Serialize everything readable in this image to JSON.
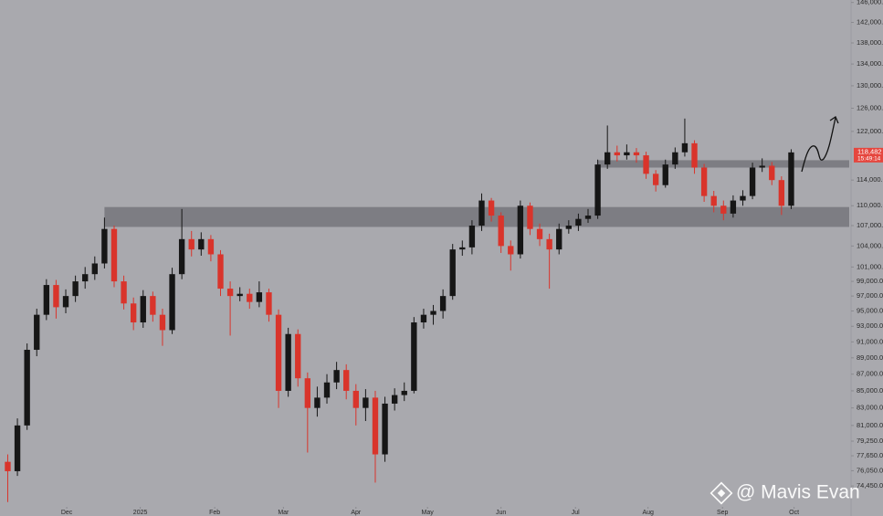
{
  "chart_data": {
    "type": "candlestick",
    "log_scale": true,
    "up_color": "#161616",
    "down_color": "#d9342b",
    "background": "#a9a9ae",
    "zone_color": "#75757b",
    "xlim": [
      -0.8,
      87
    ],
    "ylim": [
      72500,
      146500
    ],
    "xticks": [
      {
        "value": 6.1,
        "label": "Dec"
      },
      {
        "value": 13.7,
        "label": "2025"
      },
      {
        "value": 21.4,
        "label": "Feb"
      },
      {
        "value": 28.5,
        "label": "Mar"
      },
      {
        "value": 36,
        "label": "Apr"
      },
      {
        "value": 43.4,
        "label": "May"
      },
      {
        "value": 51,
        "label": "Jun"
      },
      {
        "value": 58.7,
        "label": "Jul"
      },
      {
        "value": 66.2,
        "label": "Aug"
      },
      {
        "value": 73.9,
        "label": "Sep"
      },
      {
        "value": 81.3,
        "label": "Oct"
      }
    ],
    "yticks": [
      {
        "value": 146000,
        "label": "146,000.0"
      },
      {
        "value": 142000,
        "label": "142,000.0"
      },
      {
        "value": 138000,
        "label": "138,000.0"
      },
      {
        "value": 134000,
        "label": "134,000.0"
      },
      {
        "value": 130000,
        "label": "130,000.0"
      },
      {
        "value": 126000,
        "label": "126,000.0"
      },
      {
        "value": 122000,
        "label": "122,000.0"
      },
      {
        "value": 114000,
        "label": "114,000.0"
      },
      {
        "value": 110000,
        "label": "110,000.0"
      },
      {
        "value": 107000,
        "label": "107,000.0"
      },
      {
        "value": 104000,
        "label": "104,000.0"
      },
      {
        "value": 101000,
        "label": "101,000.0"
      },
      {
        "value": 99000,
        "label": "99,000.0"
      },
      {
        "value": 97000,
        "label": "97,000.0"
      },
      {
        "value": 95000,
        "label": "95,000.0"
      },
      {
        "value": 93000,
        "label": "93,000.0"
      },
      {
        "value": 91000,
        "label": "91,000.0"
      },
      {
        "value": 89000,
        "label": "89,000.0"
      },
      {
        "value": 87000,
        "label": "87,000.0"
      },
      {
        "value": 85000,
        "label": "85,000.0"
      },
      {
        "value": 83000,
        "label": "83,000.0"
      },
      {
        "value": 81000,
        "label": "81,000.0"
      },
      {
        "value": 79250,
        "label": "79,250.0"
      },
      {
        "value": 77650,
        "label": "77,650.0"
      },
      {
        "value": 76050,
        "label": "76,050.0"
      },
      {
        "value": 74450,
        "label": "74,450.0"
      }
    ],
    "open": [
      77000,
      76000,
      81000,
      90000,
      94500,
      98500,
      95500,
      97000,
      99000,
      100000,
      101500,
      106500,
      99000,
      96000,
      93500,
      97000,
      94500,
      92500,
      100000,
      105000,
      103500,
      105000,
      102800,
      98000,
      97000,
      97300,
      96200,
      97500,
      94500,
      85000,
      92000,
      86500,
      83000,
      84200,
      86000,
      87500,
      85000,
      83000,
      84200,
      77800,
      83500,
      84500,
      85000,
      93500,
      94500,
      95000,
      97000,
      103500,
      103800,
      107000,
      110800,
      108500,
      104000,
      102800,
      110000,
      106500,
      105000,
      103500,
      106500,
      107000,
      108000,
      108500,
      116500,
      118500,
      118000,
      118500,
      118000,
      115000,
      113200,
      116500,
      118500,
      120000,
      116000,
      111500,
      110000,
      108800,
      110800,
      111500,
      116000,
      116300,
      114000,
      110000
    ],
    "high": [
      77800,
      81800,
      90800,
      95300,
      99300,
      99200,
      97900,
      99800,
      101000,
      102500,
      108200,
      107000,
      99800,
      96800,
      97800,
      97600,
      95300,
      100900,
      109500,
      106200,
      106000,
      105600,
      103400,
      99000,
      98200,
      98000,
      99000,
      98000,
      95200,
      92800,
      92600,
      87200,
      85500,
      87000,
      88500,
      88200,
      85800,
      85200,
      85000,
      84300,
      85300,
      86000,
      94200,
      95300,
      95800,
      97900,
      104300,
      104800,
      107800,
      111900,
      111200,
      109000,
      104800,
      110800,
      110500,
      107300,
      105800,
      107300,
      107800,
      108800,
      109500,
      117300,
      123000,
      119600,
      119800,
      119200,
      118600,
      115600,
      117300,
      119300,
      124200,
      120500,
      116600,
      112300,
      110800,
      111600,
      112400,
      116800,
      117500,
      116900,
      114600,
      119000
    ],
    "low": [
      72800,
      75500,
      80500,
      89200,
      93800,
      94000,
      94700,
      96200,
      98000,
      99200,
      100800,
      98200,
      95200,
      92500,
      92800,
      93600,
      90500,
      92000,
      99300,
      102500,
      102600,
      101800,
      97000,
      91800,
      96300,
      95300,
      95500,
      93600,
      83000,
      84300,
      85500,
      78000,
      82000,
      83500,
      85200,
      84000,
      81000,
      81500,
      74800,
      77000,
      82700,
      83800,
      84700,
      92700,
      93200,
      94000,
      96500,
      102600,
      102800,
      106200,
      107600,
      103000,
      100500,
      102200,
      105600,
      104000,
      98000,
      102800,
      105800,
      106200,
      107400,
      108000,
      115800,
      117000,
      117300,
      116800,
      114200,
      112200,
      112800,
      115800,
      117800,
      115000,
      110600,
      109000,
      107800,
      108200,
      110000,
      111000,
      115300,
      113200,
      108600,
      109500
    ],
    "close": [
      76000,
      81000,
      90000,
      94500,
      98500,
      95500,
      97000,
      99000,
      100000,
      101500,
      106500,
      99000,
      96000,
      93500,
      97000,
      94500,
      92500,
      100000,
      105000,
      103500,
      105000,
      102800,
      98000,
      97000,
      97300,
      96200,
      97500,
      94500,
      85000,
      92000,
      86500,
      83000,
      84200,
      86000,
      87500,
      85000,
      83000,
      84200,
      77800,
      83500,
      84500,
      85000,
      93500,
      94500,
      95000,
      97000,
      103500,
      103800,
      107000,
      110800,
      108500,
      104000,
      102800,
      110000,
      106500,
      105000,
      103500,
      106500,
      107000,
      108000,
      108500,
      116500,
      118500,
      118000,
      118500,
      118000,
      115000,
      113200,
      116500,
      118500,
      120000,
      116000,
      111500,
      110000,
      108800,
      110800,
      111500,
      116000,
      116300,
      114000,
      110000,
      118482
    ],
    "zones": [
      {
        "x_start": 10,
        "low": 106800,
        "high": 109800
      },
      {
        "x_start": 61,
        "low": 116000,
        "high": 117200
      }
    ],
    "last_price": {
      "value": 118482,
      "label": "118,482"
    },
    "countdown": "15:49:14",
    "watermark": "@ Mavis Evan"
  }
}
